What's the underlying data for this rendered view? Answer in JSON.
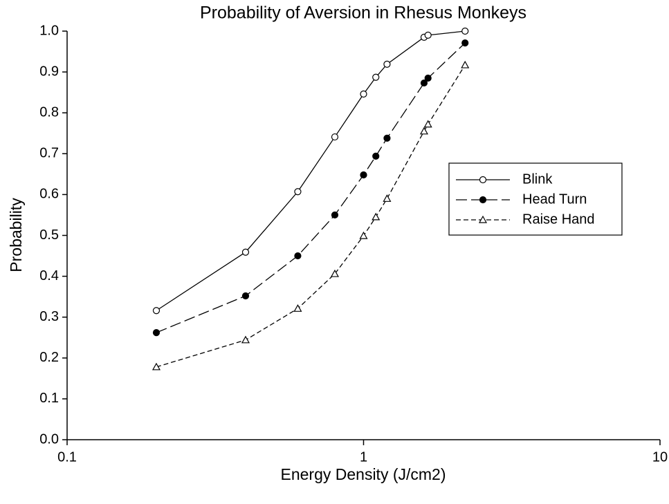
{
  "chart_data": {
    "type": "line",
    "title": "Probability of Aversion in Rhesus Monkeys",
    "xlabel": "Energy Density (J/cm2)",
    "ylabel": "Probability",
    "xscale": "log",
    "xlim": [
      0.1,
      10
    ],
    "xticks": [
      0.1,
      1,
      10
    ],
    "ylim": [
      0,
      1
    ],
    "yticks": [
      {
        "value": 0,
        "label": "0.0"
      },
      0.1,
      0.2,
      0.3,
      0.4,
      0.5,
      0.6,
      0.7,
      0.8,
      0.9,
      {
        "value": 1,
        "label": "1.0"
      }
    ],
    "legend": "right",
    "series": [
      {
        "name": "Blink",
        "color": "#000000",
        "marker": "circle-open",
        "dash": "solid",
        "x": [
          0.2,
          0.4,
          0.6,
          0.8,
          1.0,
          1.1,
          1.2,
          1.6,
          1.65,
          2.2
        ],
        "values": [
          0.316,
          0.459,
          0.607,
          0.741,
          0.846,
          0.887,
          0.919,
          0.985,
          0.99,
          1.0
        ]
      },
      {
        "name": "Head Turn",
        "color": "#000000",
        "marker": "circle-filled",
        "dash": "long",
        "x": [
          0.2,
          0.4,
          0.6,
          0.8,
          1.0,
          1.1,
          1.2,
          1.6,
          1.65,
          2.2
        ],
        "values": [
          0.262,
          0.352,
          0.45,
          0.55,
          0.648,
          0.694,
          0.738,
          0.873,
          0.885,
          0.971
        ]
      },
      {
        "name": "Raise Hand",
        "color": "#000000",
        "marker": "triangle-open",
        "dash": "short",
        "x": [
          0.2,
          0.4,
          0.6,
          0.8,
          1.0,
          1.1,
          1.2,
          1.6,
          1.65,
          2.2
        ],
        "values": [
          0.178,
          0.244,
          0.321,
          0.406,
          0.499,
          0.545,
          0.59,
          0.755,
          0.772,
          0.917
        ]
      }
    ]
  }
}
